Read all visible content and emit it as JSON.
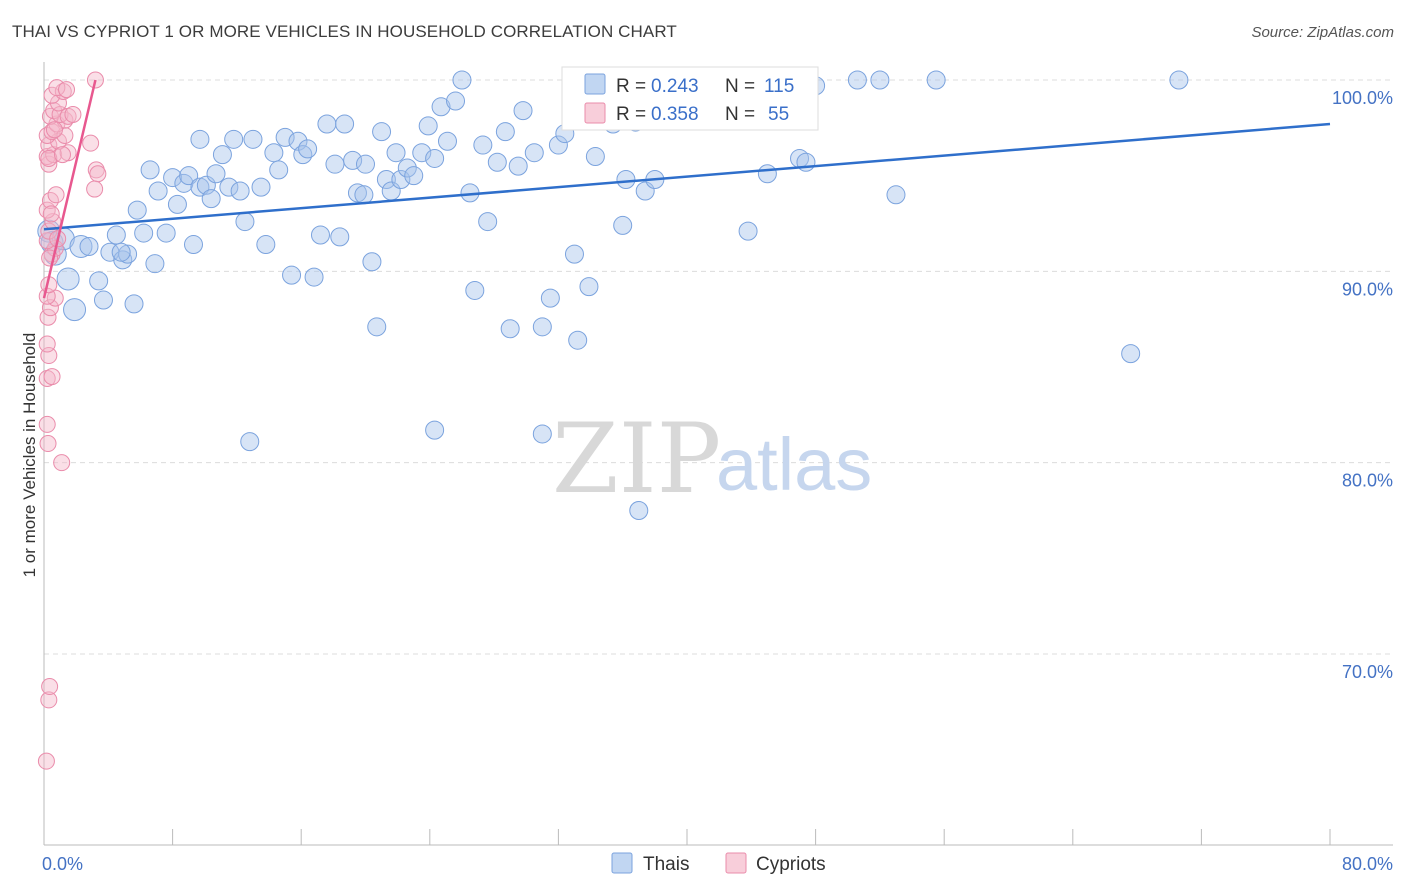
{
  "chart_data": {
    "type": "scatter",
    "title": "THAI VS CYPRIOT 1 OR MORE VEHICLES IN HOUSEHOLD CORRELATION CHART",
    "source": "Source: ZipAtlas.com",
    "xlabel": "",
    "ylabel": "1 or more Vehicles in Household",
    "xlim": [
      0,
      80
    ],
    "ylim": [
      60.5,
      101
    ],
    "x_tick_labels": [
      "0.0%",
      "80.0%"
    ],
    "y_ticks": [
      100,
      90,
      80,
      70
    ],
    "y_tick_labels": [
      "100.0%",
      "90.0%",
      "80.0%",
      "70.0%"
    ],
    "grid": true,
    "watermark": [
      "ZIP",
      "atlas"
    ],
    "legend_stats": [
      {
        "r_label": "R = ",
        "r_value": "0.243",
        "n_label": "N = ",
        "n_value": "115"
      },
      {
        "r_label": "R = ",
        "r_value": "0.358",
        "n_label": "N = ",
        "n_value": "55"
      }
    ],
    "series": [
      {
        "name": "Thais",
        "color": "#a7c4ec",
        "stroke": "#7ba3de",
        "trend_color": "#2f6fcb",
        "trend": {
          "x0": 0,
          "y0": 92.2,
          "x1": 80,
          "y1": 97.7
        },
        "points": [
          [
            0.3,
            92.1
          ],
          [
            0.5,
            91.5
          ],
          [
            0.7,
            90.9
          ],
          [
            1.2,
            91.7
          ],
          [
            1.5,
            89.6
          ],
          [
            1.9,
            88.0
          ],
          [
            2.3,
            91.3
          ],
          [
            2.8,
            91.3
          ],
          [
            3.4,
            89.5
          ],
          [
            3.7,
            88.5
          ],
          [
            4.1,
            91.0
          ],
          [
            4.5,
            91.9
          ],
          [
            4.9,
            90.6
          ],
          [
            5.2,
            90.9
          ],
          [
            5.6,
            88.3
          ],
          [
            5.8,
            93.2
          ],
          [
            6.2,
            92.0
          ],
          [
            6.6,
            95.3
          ],
          [
            6.9,
            90.4
          ],
          [
            7.1,
            94.2
          ],
          [
            7.6,
            92.0
          ],
          [
            8.0,
            94.9
          ],
          [
            8.3,
            93.5
          ],
          [
            8.7,
            94.6
          ],
          [
            9.0,
            95.0
          ],
          [
            9.3,
            91.4
          ],
          [
            9.7,
            94.4
          ],
          [
            10.1,
            94.5
          ],
          [
            10.4,
            93.8
          ],
          [
            10.7,
            95.1
          ],
          [
            11.1,
            96.1
          ],
          [
            11.5,
            94.4
          ],
          [
            11.8,
            96.9
          ],
          [
            12.2,
            94.2
          ],
          [
            12.5,
            92.6
          ],
          [
            13.0,
            96.9
          ],
          [
            13.5,
            94.4
          ],
          [
            13.8,
            91.4
          ],
          [
            14.3,
            96.2
          ],
          [
            14.6,
            95.3
          ],
          [
            15.0,
            97.0
          ],
          [
            15.4,
            89.8
          ],
          [
            15.8,
            96.8
          ],
          [
            16.1,
            96.1
          ],
          [
            16.4,
            96.4
          ],
          [
            16.8,
            89.7
          ],
          [
            17.2,
            91.9
          ],
          [
            17.6,
            97.7
          ],
          [
            18.1,
            95.6
          ],
          [
            18.4,
            91.8
          ],
          [
            18.7,
            97.7
          ],
          [
            19.2,
            95.8
          ],
          [
            19.5,
            94.1
          ],
          [
            20.0,
            95.6
          ],
          [
            20.4,
            90.5
          ],
          [
            20.7,
            87.1
          ],
          [
            21.0,
            97.3
          ],
          [
            21.3,
            94.8
          ],
          [
            21.6,
            94.2
          ],
          [
            21.9,
            96.2
          ],
          [
            22.2,
            94.8
          ],
          [
            22.6,
            95.4
          ],
          [
            23.0,
            95.0
          ],
          [
            23.5,
            96.2
          ],
          [
            23.9,
            97.6
          ],
          [
            24.3,
            95.9
          ],
          [
            24.7,
            98.6
          ],
          [
            25.1,
            96.8
          ],
          [
            25.6,
            98.9
          ],
          [
            26.0,
            100.0
          ],
          [
            26.5,
            94.1
          ],
          [
            26.8,
            89.0
          ],
          [
            27.3,
            96.6
          ],
          [
            27.6,
            92.6
          ],
          [
            28.2,
            95.7
          ],
          [
            28.7,
            97.3
          ],
          [
            29.0,
            87.0
          ],
          [
            29.5,
            95.5
          ],
          [
            29.8,
            98.4
          ],
          [
            30.5,
            96.2
          ],
          [
            31.0,
            87.1
          ],
          [
            31.5,
            88.6
          ],
          [
            32.0,
            96.6
          ],
          [
            32.4,
            97.2
          ],
          [
            33.0,
            90.9
          ],
          [
            33.2,
            86.4
          ],
          [
            33.9,
            89.2
          ],
          [
            34.3,
            96.0
          ],
          [
            35.0,
            100.0
          ],
          [
            35.4,
            97.7
          ],
          [
            36.0,
            92.4
          ],
          [
            36.2,
            94.8
          ],
          [
            36.8,
            97.8
          ],
          [
            37.4,
            94.2
          ],
          [
            38.0,
            94.8
          ],
          [
            39.0,
            99.8
          ],
          [
            40.0,
            100.0
          ],
          [
            43.8,
            92.1
          ],
          [
            45.0,
            95.1
          ],
          [
            47.0,
            95.9
          ],
          [
            47.4,
            95.7
          ],
          [
            48.0,
            99.7
          ],
          [
            50.6,
            100.0
          ],
          [
            52.0,
            100.0
          ],
          [
            53.0,
            94.0
          ],
          [
            55.5,
            100.0
          ],
          [
            67.6,
            85.7
          ],
          [
            70.6,
            100.0
          ],
          [
            12.8,
            81.1
          ],
          [
            24.3,
            81.7
          ],
          [
            31.0,
            81.5
          ],
          [
            37.0,
            77.5
          ],
          [
            4.8,
            91.0
          ],
          [
            19.9,
            94.0
          ],
          [
            9.7,
            96.9
          ]
        ]
      },
      {
        "name": "Cypriots",
        "color": "#f5b9ca",
        "stroke": "#ea8cab",
        "trend_color": "#e8588f",
        "trend": {
          "x0": 0,
          "y0": 88.6,
          "x1": 3.2,
          "y1": 100.0
        },
        "points": [
          [
            0.15,
            64.4
          ],
          [
            0.3,
            67.6
          ],
          [
            0.35,
            68.3
          ],
          [
            0.2,
            82.0
          ],
          [
            0.25,
            81.0
          ],
          [
            1.1,
            80.0
          ],
          [
            0.2,
            84.4
          ],
          [
            0.5,
            84.5
          ],
          [
            0.3,
            85.6
          ],
          [
            0.2,
            86.2
          ],
          [
            0.25,
            87.6
          ],
          [
            0.4,
            88.1
          ],
          [
            0.7,
            88.6
          ],
          [
            0.2,
            88.7
          ],
          [
            0.3,
            89.3
          ],
          [
            0.5,
            90.9
          ],
          [
            0.7,
            91.2
          ],
          [
            0.2,
            91.6
          ],
          [
            0.3,
            92.1
          ],
          [
            0.55,
            92.6
          ],
          [
            0.2,
            93.2
          ],
          [
            0.4,
            93.7
          ],
          [
            0.75,
            94.0
          ],
          [
            0.3,
            95.6
          ],
          [
            0.2,
            96.0
          ],
          [
            0.6,
            96.1
          ],
          [
            1.5,
            96.2
          ],
          [
            0.3,
            96.6
          ],
          [
            0.9,
            96.8
          ],
          [
            0.2,
            97.1
          ],
          [
            0.5,
            97.3
          ],
          [
            1.3,
            97.1
          ],
          [
            0.8,
            97.7
          ],
          [
            1.3,
            97.9
          ],
          [
            0.4,
            98.1
          ],
          [
            0.6,
            98.4
          ],
          [
            1.0,
            98.2
          ],
          [
            1.5,
            98.1
          ],
          [
            1.8,
            98.2
          ],
          [
            0.9,
            98.8
          ],
          [
            0.5,
            99.2
          ],
          [
            1.2,
            99.4
          ],
          [
            0.8,
            99.6
          ],
          [
            1.4,
            99.5
          ],
          [
            3.2,
            100.0
          ],
          [
            3.25,
            95.3
          ],
          [
            3.35,
            95.1
          ],
          [
            3.15,
            94.3
          ],
          [
            2.9,
            96.7
          ],
          [
            0.3,
            95.9
          ],
          [
            0.65,
            97.4
          ],
          [
            1.15,
            96.1
          ],
          [
            0.45,
            93.0
          ],
          [
            0.85,
            91.7
          ],
          [
            0.35,
            90.7
          ]
        ]
      }
    ]
  }
}
